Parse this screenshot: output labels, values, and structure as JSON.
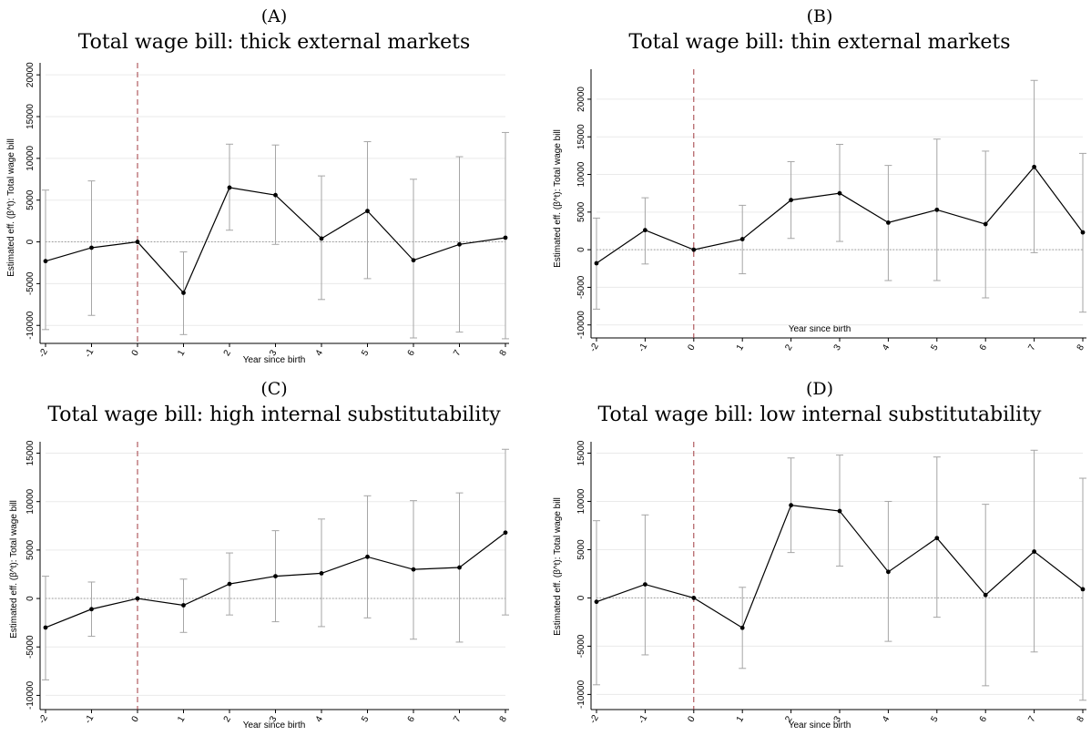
{
  "chart_data": [
    {
      "type": "line",
      "panel_letter": "(A)",
      "title": "Total wage bill: thick external markets",
      "xlabel": "Year since birth",
      "ylabel": "Estimated eff. (β^t): Total wage bill",
      "x": [
        -2,
        -1,
        0,
        1,
        2,
        3,
        4,
        5,
        6,
        7,
        8
      ],
      "x_tick_labels": [
        "-2",
        "-1",
        "0",
        "1",
        "2",
        "3",
        "4",
        "5",
        "6",
        "7",
        "8"
      ],
      "ylim": [
        -11500,
        21000
      ],
      "yticks": [
        -10000,
        -5000,
        0,
        5000,
        10000,
        15000,
        20000
      ],
      "estimate": [
        -2300,
        -700,
        0,
        -6100,
        6500,
        5600,
        400,
        3700,
        -2200,
        -300,
        500
      ],
      "ci_low": [
        -10500,
        -8800,
        0,
        -11100,
        1400,
        -300,
        -6900,
        -4400,
        -11500,
        -10800,
        -11600
      ],
      "ci_high": [
        6200,
        7300,
        0,
        -1200,
        11700,
        11600,
        7900,
        12000,
        7500,
        10200,
        13100
      ],
      "reference_line_x": 0,
      "zero_line_y": 0,
      "grid": true
    },
    {
      "type": "line",
      "panel_letter": "(B)",
      "title": "Total wage bill: thin external markets",
      "xlabel": "Year since birth",
      "ylabel": "Estimated eff. (β^t): Total wage bill",
      "x": [
        -2,
        -1,
        0,
        1,
        2,
        3,
        4,
        5,
        6,
        7,
        8
      ],
      "x_tick_labels": [
        "-2",
        "-1",
        "0",
        "1",
        "2",
        "3",
        "4",
        "5",
        "6",
        "7",
        "8"
      ],
      "ylim": [
        -11000,
        23500
      ],
      "yticks": [
        -10000,
        -5000,
        0,
        5000,
        10000,
        15000,
        20000
      ],
      "estimate": [
        -1800,
        2600,
        0,
        1400,
        6600,
        7500,
        3600,
        5300,
        3400,
        11000,
        2300
      ],
      "ci_low": [
        -7900,
        -1900,
        0,
        -3200,
        1500,
        1100,
        -4100,
        -4100,
        -6400,
        -400,
        -8300
      ],
      "ci_high": [
        4200,
        6900,
        0,
        5900,
        11700,
        14000,
        11200,
        14700,
        13100,
        22500,
        12800
      ],
      "reference_line_x": 0,
      "zero_line_y": 0,
      "grid": true
    },
    {
      "type": "line",
      "panel_letter": "(C)",
      "title": "Total wage bill: high internal substitutability",
      "xlabel": "Year since birth",
      "ylabel": "Estimated eff. (β^t): Total wage bill",
      "x": [
        -2,
        -1,
        0,
        1,
        2,
        3,
        4,
        5,
        6,
        7,
        8
      ],
      "x_tick_labels": [
        "-2",
        "-1",
        "0",
        "1",
        "2",
        "3",
        "4",
        "5",
        "6",
        "7",
        "8"
      ],
      "ylim": [
        -10900,
        15800
      ],
      "yticks": [
        -10000,
        -5000,
        0,
        5000,
        10000,
        15000
      ],
      "estimate": [
        -3000,
        -1100,
        0,
        -700,
        1500,
        2300,
        2600,
        4300,
        3000,
        3200,
        6800
      ],
      "ci_low": [
        -8400,
        -3900,
        0,
        -3500,
        -1700,
        -2400,
        -2900,
        -2000,
        -4200,
        -4500,
        -1700
      ],
      "ci_high": [
        2300,
        1700,
        0,
        2000,
        4700,
        7000,
        8200,
        10600,
        10100,
        10900,
        15400
      ],
      "reference_line_x": 0,
      "zero_line_y": 0,
      "grid": true
    },
    {
      "type": "line",
      "panel_letter": "(D)",
      "title": "Total wage bill: low internal substitutability",
      "xlabel": "Year since birth",
      "ylabel": "Estimated eff. (β^t): Total wage bill",
      "x": [
        -2,
        -1,
        0,
        1,
        2,
        3,
        4,
        5,
        6,
        7,
        8
      ],
      "x_tick_labels": [
        "-2",
        "-1",
        "0",
        "1",
        "2",
        "3",
        "4",
        "5",
        "6",
        "7",
        "8"
      ],
      "ylim": [
        -11000,
        15800
      ],
      "yticks": [
        -10000,
        -5000,
        0,
        5000,
        10000,
        15000
      ],
      "estimate": [
        -400,
        1400,
        0,
        -3100,
        9600,
        9000,
        2700,
        6200,
        300,
        4800,
        900
      ],
      "ci_low": [
        -9000,
        -5900,
        0,
        -7300,
        4700,
        3300,
        -4500,
        -2000,
        -9100,
        -5600,
        -10600
      ],
      "ci_high": [
        8000,
        8600,
        0,
        1100,
        14500,
        14800,
        10000,
        14600,
        9700,
        15300,
        12400
      ],
      "reference_line_x": 0,
      "zero_line_y": 0,
      "grid": true
    }
  ]
}
